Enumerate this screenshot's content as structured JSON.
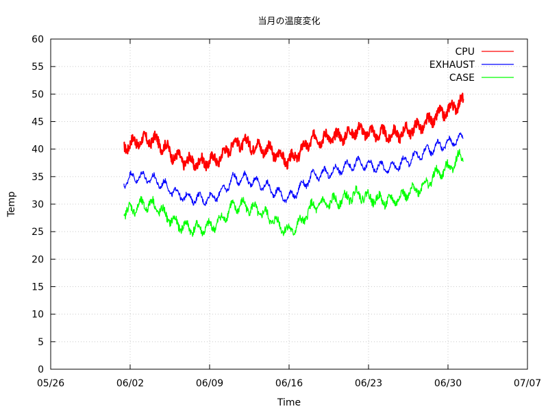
{
  "chart_data": {
    "type": "line",
    "title": "当月の温度変化",
    "xlabel": "Time",
    "ylabel": "Temp",
    "xlim": [
      "2024-05-26",
      "2024-07-07"
    ],
    "ylim": [
      0,
      60
    ],
    "grid": true,
    "legend_position": "top-right",
    "x_ticks": [
      "05/26",
      "06/02",
      "06/09",
      "06/16",
      "06/23",
      "06/30",
      "07/07"
    ],
    "y_ticks": [
      0,
      5,
      10,
      15,
      20,
      25,
      30,
      35,
      40,
      45,
      50,
      55,
      60
    ],
    "x": [
      "2024-06-01",
      "2024-06-02",
      "2024-06-03",
      "2024-06-04",
      "2024-06-05",
      "2024-06-06",
      "2024-06-07",
      "2024-06-08",
      "2024-06-09",
      "2024-06-10",
      "2024-06-11",
      "2024-06-12",
      "2024-06-13",
      "2024-06-14",
      "2024-06-15",
      "2024-06-16",
      "2024-06-17",
      "2024-06-18",
      "2024-06-19",
      "2024-06-20",
      "2024-06-21",
      "2024-06-22",
      "2024-06-23",
      "2024-06-24",
      "2024-06-25",
      "2024-06-26",
      "2024-06-27",
      "2024-06-28",
      "2024-06-29",
      "2024-06-30",
      "2024-07-01"
    ],
    "series": [
      {
        "name": "CPU",
        "color": "#ff0000",
        "values": [
          39.8,
          41.0,
          41.5,
          41.8,
          40.5,
          38.5,
          37.8,
          37.5,
          37.8,
          38.5,
          41.0,
          41.2,
          40.5,
          40.0,
          39.0,
          37.8,
          39.5,
          41.8,
          42.0,
          42.2,
          42.5,
          43.5,
          43.0,
          42.8,
          42.5,
          43.0,
          43.8,
          44.5,
          46.0,
          47.0,
          48.5
        ]
      },
      {
        "name": "EXHAUST",
        "color": "#0000ff",
        "values": [
          33.2,
          34.8,
          35.0,
          34.5,
          33.5,
          32.0,
          31.2,
          31.0,
          31.0,
          32.0,
          34.5,
          34.8,
          34.0,
          33.2,
          32.0,
          31.0,
          33.0,
          35.0,
          35.5,
          36.0,
          36.8,
          37.5,
          37.0,
          36.8,
          36.5,
          37.5,
          38.5,
          39.5,
          40.5,
          41.0,
          42.0
        ]
      },
      {
        "name": "CASE",
        "color": "#00ff00",
        "values": [
          27.8,
          29.0,
          29.8,
          30.0,
          28.2,
          26.5,
          25.8,
          25.5,
          25.8,
          27.0,
          29.5,
          29.8,
          29.0,
          28.0,
          26.5,
          25.0,
          26.5,
          29.5,
          30.0,
          30.5,
          31.0,
          32.0,
          31.2,
          30.8,
          30.5,
          31.5,
          32.5,
          33.5,
          35.5,
          36.5,
          38.5
        ]
      }
    ]
  }
}
